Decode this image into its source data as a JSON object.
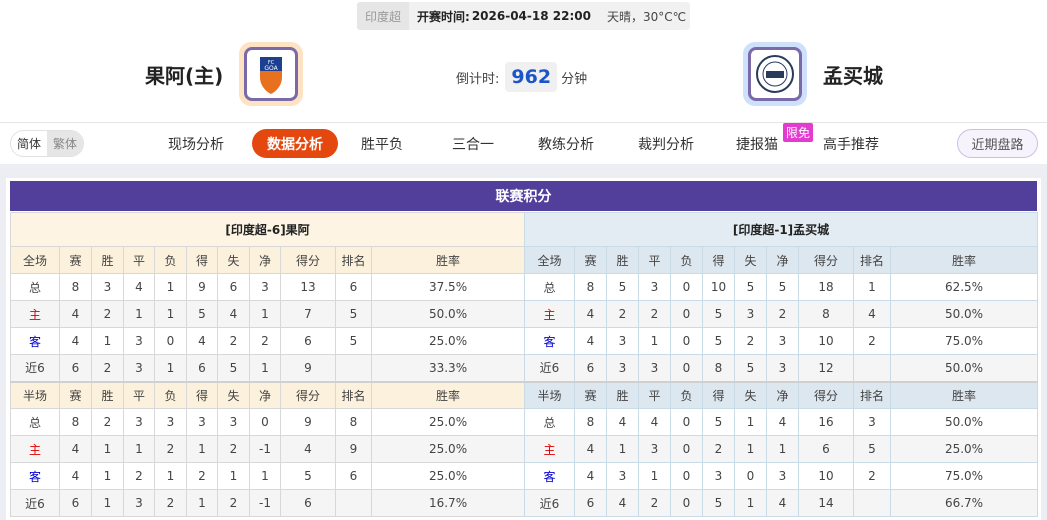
{
  "match": {
    "league": "印度超",
    "kickoff_label": "开赛时间:",
    "kickoff": "2026-04-18 22:00",
    "weather": "天晴，30°C℃"
  },
  "home": {
    "name": "果阿(主)",
    "logo_text": "FC GOA",
    "logo_bg": "#fde3c4"
  },
  "away": {
    "name": "孟买城",
    "logo_bg": "#cfe0fb"
  },
  "countdown": {
    "label": "倒计时:",
    "value": "962",
    "unit": "分钟"
  },
  "lang": {
    "simplified": "简体",
    "traditional": "繁体"
  },
  "tabs": [
    {
      "label": "现场分析"
    },
    {
      "label": "数据分析",
      "active": true
    },
    {
      "label": "胜平负"
    },
    {
      "label": "三合一"
    },
    {
      "label": "教练分析"
    },
    {
      "label": "裁判分析"
    },
    {
      "label": "捷报猫"
    },
    {
      "label": "高手推荐"
    }
  ],
  "badge": "限免",
  "recent_button": "近期盘路",
  "standings": {
    "title": "联赛积分",
    "columns": [
      "赛",
      "胜",
      "平",
      "负",
      "得",
      "失",
      "净",
      "得分",
      "排名",
      "胜率"
    ],
    "full_label": "全场",
    "half_label": "半场",
    "teams": [
      {
        "header": "[印度超-6]果阿",
        "full": [
          [
            "总",
            "8",
            "3",
            "4",
            "1",
            "9",
            "6",
            "3",
            "13",
            "6",
            "37.5%"
          ],
          [
            "主",
            "4",
            "2",
            "1",
            "1",
            "5",
            "4",
            "1",
            "7",
            "5",
            "50.0%"
          ],
          [
            "客",
            "4",
            "1",
            "3",
            "0",
            "4",
            "2",
            "2",
            "6",
            "5",
            "25.0%"
          ],
          [
            "近6",
            "6",
            "2",
            "3",
            "1",
            "6",
            "5",
            "1",
            "9",
            "",
            "33.3%"
          ]
        ],
        "half": [
          [
            "总",
            "8",
            "2",
            "3",
            "3",
            "3",
            "3",
            "0",
            "9",
            "8",
            "25.0%"
          ],
          [
            "主",
            "4",
            "1",
            "1",
            "2",
            "1",
            "2",
            "-1",
            "4",
            "9",
            "25.0%"
          ],
          [
            "客",
            "4",
            "1",
            "2",
            "1",
            "2",
            "1",
            "1",
            "5",
            "6",
            "25.0%"
          ],
          [
            "近6",
            "6",
            "1",
            "3",
            "2",
            "1",
            "2",
            "-1",
            "6",
            "",
            "16.7%"
          ]
        ]
      },
      {
        "header": "[印度超-1]孟买城",
        "full": [
          [
            "总",
            "8",
            "5",
            "3",
            "0",
            "10",
            "5",
            "5",
            "18",
            "1",
            "62.5%"
          ],
          [
            "主",
            "4",
            "2",
            "2",
            "0",
            "5",
            "3",
            "2",
            "8",
            "4",
            "50.0%"
          ],
          [
            "客",
            "4",
            "3",
            "1",
            "0",
            "5",
            "2",
            "3",
            "10",
            "2",
            "75.0%"
          ],
          [
            "近6",
            "6",
            "3",
            "3",
            "0",
            "8",
            "5",
            "3",
            "12",
            "",
            "50.0%"
          ]
        ],
        "half": [
          [
            "总",
            "8",
            "4",
            "4",
            "0",
            "5",
            "1",
            "4",
            "16",
            "3",
            "50.0%"
          ],
          [
            "主",
            "4",
            "1",
            "3",
            "0",
            "2",
            "1",
            "1",
            "6",
            "5",
            "25.0%"
          ],
          [
            "客",
            "4",
            "3",
            "1",
            "0",
            "3",
            "0",
            "3",
            "10",
            "2",
            "75.0%"
          ],
          [
            "近6",
            "6",
            "4",
            "2",
            "0",
            "5",
            "1",
            "4",
            "14",
            "",
            "66.7%"
          ]
        ]
      }
    ]
  }
}
